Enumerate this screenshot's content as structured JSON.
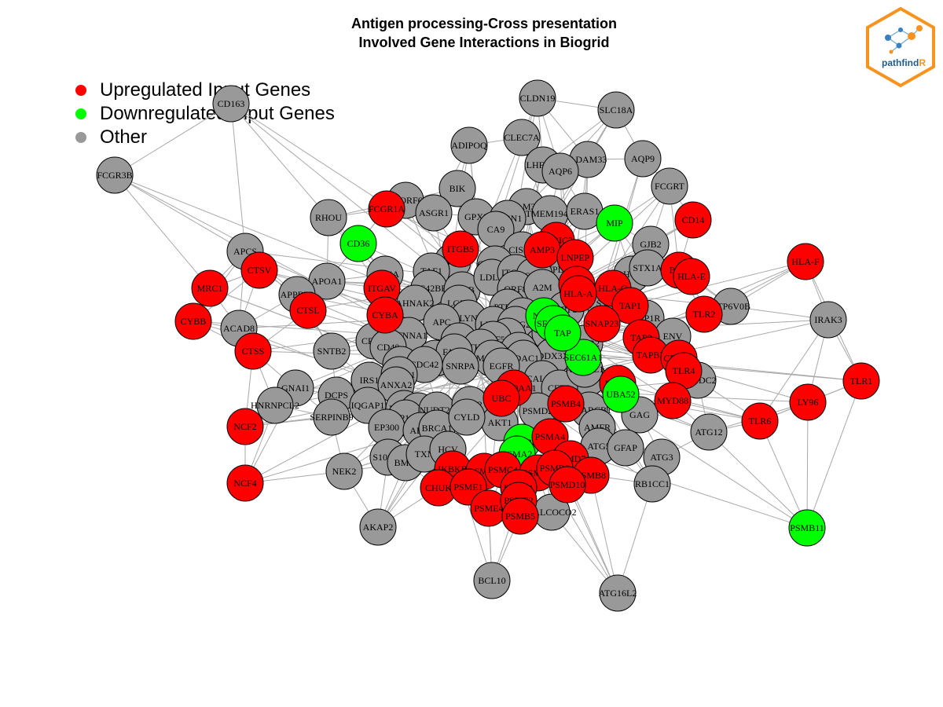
{
  "title": {
    "line1": "Antigen processing-Cross presentation",
    "line2": "Involved Gene Interactions in Biogrid"
  },
  "legend": {
    "items": [
      {
        "label": "Upregulated Input Genes",
        "color": "#FF0000"
      },
      {
        "label": "Downregulated Input Genes",
        "color": "#00FF00"
      },
      {
        "label": "Other",
        "color": "#999999"
      }
    ]
  },
  "logo": {
    "text_a": "pathfind",
    "text_b": "R",
    "border_color": "#F7931E",
    "text_color": "#1F5C8B"
  },
  "colors": {
    "up": "#FF0000",
    "down": "#00FF00",
    "other": "#999999",
    "edge": "#A9A9A9"
  },
  "network": {
    "nodes": [
      {
        "id": "CD163",
        "type": "other"
      },
      {
        "id": "CLDN19",
        "type": "other"
      },
      {
        "id": "SLC18A",
        "type": "other"
      },
      {
        "id": "CLEC7A",
        "type": "other"
      },
      {
        "id": "ADIPOQ",
        "type": "other"
      },
      {
        "id": "ADAM33",
        "type": "other"
      },
      {
        "id": "AQP9",
        "type": "other"
      },
      {
        "id": "LHFPL5",
        "type": "other"
      },
      {
        "id": "AQP6",
        "type": "other"
      },
      {
        "id": "FCGR3B",
        "type": "other"
      },
      {
        "id": "BIK",
        "type": "other"
      },
      {
        "id": "FCGRT",
        "type": "other"
      },
      {
        "id": "C17ORF62",
        "type": "other"
      },
      {
        "id": "FCGR1A",
        "type": "up"
      },
      {
        "id": "FAM3C",
        "type": "other"
      },
      {
        "id": "ASGR1",
        "type": "other"
      },
      {
        "id": "GPX8",
        "type": "other"
      },
      {
        "id": "JAGN1",
        "type": "other"
      },
      {
        "id": "TMEM194A",
        "type": "other"
      },
      {
        "id": "ERAS1",
        "type": "other"
      },
      {
        "id": "MIP",
        "type": "down"
      },
      {
        "id": "CD14",
        "type": "up"
      },
      {
        "id": "RHOU",
        "type": "other"
      },
      {
        "id": "CA9",
        "type": "other"
      },
      {
        "id": "CD36",
        "type": "down"
      },
      {
        "id": "GJB2",
        "type": "other"
      },
      {
        "id": "APCS",
        "type": "other"
      },
      {
        "id": "ITGB5",
        "type": "up"
      },
      {
        "id": "ANXA7",
        "type": "other"
      },
      {
        "id": "CISD2",
        "type": "other"
      },
      {
        "id": "ERGIC3",
        "type": "up"
      },
      {
        "id": "TMP3",
        "type": "up"
      },
      {
        "id": "LNPEP",
        "type": "up"
      },
      {
        "id": "HLA-F",
        "type": "up"
      },
      {
        "id": "CTSV",
        "type": "up"
      },
      {
        "id": "ATP4A",
        "type": "other"
      },
      {
        "id": "TAF1",
        "type": "other"
      },
      {
        "id": "CYB5R3",
        "type": "other"
      },
      {
        "id": "ZFPL1",
        "type": "other"
      },
      {
        "id": "ARHGAP3",
        "type": "other"
      },
      {
        "id": "STX1A",
        "type": "other"
      },
      {
        "id": "B2M",
        "type": "up"
      },
      {
        "id": "HLA-E",
        "type": "up"
      },
      {
        "id": "MRC1",
        "type": "up"
      },
      {
        "id": "APOA1",
        "type": "other"
      },
      {
        "id": "ITGAV",
        "type": "up"
      },
      {
        "id": "CDC42BPA",
        "type": "other"
      },
      {
        "id": "APOB",
        "type": "other"
      },
      {
        "id": "LDLR",
        "type": "other"
      },
      {
        "id": "ITGAL",
        "type": "other"
      },
      {
        "id": "SYK",
        "type": "other"
      },
      {
        "id": "STX4",
        "type": "up"
      },
      {
        "id": "HLA-G",
        "type": "up"
      },
      {
        "id": "APPBP2",
        "type": "other"
      },
      {
        "id": "AHNAK2",
        "type": "other"
      },
      {
        "id": "LGR4",
        "type": "other"
      },
      {
        "id": "ORF8",
        "type": "other"
      },
      {
        "id": "A2M",
        "type": "other"
      },
      {
        "id": "HLA-A",
        "type": "up"
      },
      {
        "id": "SYT",
        "type": "other"
      },
      {
        "id": "TAP1",
        "type": "up"
      },
      {
        "id": "ATP6V0B",
        "type": "other"
      },
      {
        "id": "CYBB",
        "type": "up"
      },
      {
        "id": "CTSL",
        "type": "up"
      },
      {
        "id": "CYBA",
        "type": "up"
      },
      {
        "id": "LYN",
        "type": "other"
      },
      {
        "id": "PTPN1",
        "type": "other"
      },
      {
        "id": "BCAP",
        "type": "other"
      },
      {
        "id": "NSP4",
        "type": "down"
      },
      {
        "id": "SEC61B",
        "type": "down"
      },
      {
        "id": "ORF3",
        "type": "other"
      },
      {
        "id": "SNAP23",
        "type": "up"
      },
      {
        "id": "GLP1R",
        "type": "other"
      },
      {
        "id": "TLR2",
        "type": "up"
      },
      {
        "id": "IRAK3",
        "type": "other"
      },
      {
        "id": "ACAD8",
        "type": "other"
      },
      {
        "id": "APC",
        "type": "other"
      },
      {
        "id": "CTNNA1",
        "type": "other"
      },
      {
        "id": "LMNA",
        "type": "other"
      },
      {
        "id": "INSIG2",
        "type": "other"
      },
      {
        "id": "ATP1A1",
        "type": "other"
      },
      {
        "id": "TAP2",
        "type": "up"
      },
      {
        "id": "ENV",
        "type": "other"
      },
      {
        "id": "CTSS",
        "type": "up"
      },
      {
        "id": "CRKL",
        "type": "other"
      },
      {
        "id": "CD40",
        "type": "other"
      },
      {
        "id": "BCL2L1",
        "type": "other"
      },
      {
        "id": "RNF5",
        "type": "other"
      },
      {
        "id": "STX6",
        "type": "other"
      },
      {
        "id": "VAPB",
        "type": "other"
      },
      {
        "id": "ASGR2",
        "type": "other"
      },
      {
        "id": "SNTB2",
        "type": "other"
      },
      {
        "id": "MSN",
        "type": "other"
      },
      {
        "id": "PTHRC2",
        "type": "other"
      },
      {
        "id": "KRAS",
        "type": "other"
      },
      {
        "id": "DDX3X",
        "type": "other"
      },
      {
        "id": "SEC61A1",
        "type": "down"
      },
      {
        "id": "TAPBP",
        "type": "up"
      },
      {
        "id": "CRYAB",
        "type": "up"
      },
      {
        "id": "FASN",
        "type": "other"
      },
      {
        "id": "MOV10",
        "type": "other"
      },
      {
        "id": "VDAC1",
        "type": "other"
      },
      {
        "id": "TLR4",
        "type": "up"
      },
      {
        "id": "TLR1",
        "type": "up"
      },
      {
        "id": "CKAP4",
        "type": "other"
      },
      {
        "id": "CDC42",
        "type": "other"
      },
      {
        "id": "SNRPA",
        "type": "other"
      },
      {
        "id": "EGFR",
        "type": "other"
      },
      {
        "id": "IRS1",
        "type": "other"
      },
      {
        "id": "TEX101",
        "type": "other"
      },
      {
        "id": "CALM1",
        "type": "other"
      },
      {
        "id": "HGS",
        "type": "other"
      },
      {
        "id": "MESDC2",
        "type": "other"
      },
      {
        "id": "MRC2",
        "type": "up"
      },
      {
        "id": "GNAI1",
        "type": "other"
      },
      {
        "id": "ANXA2",
        "type": "other"
      },
      {
        "id": "HSP90AA1",
        "type": "up"
      },
      {
        "id": "UBA52",
        "type": "down"
      },
      {
        "id": "LY96",
        "type": "up"
      },
      {
        "id": "DCPS",
        "type": "other"
      },
      {
        "id": "CFTR",
        "type": "other"
      },
      {
        "id": "MYD88",
        "type": "up"
      },
      {
        "id": "HNRNPCL2",
        "type": "other"
      },
      {
        "id": "IQGAP1",
        "type": "other"
      },
      {
        "id": "XRCC6",
        "type": "other"
      },
      {
        "id": "PRKDC",
        "type": "other"
      },
      {
        "id": "UBC",
        "type": "up"
      },
      {
        "id": "PSMD2",
        "type": "other"
      },
      {
        "id": "SMARCB1",
        "type": "other"
      },
      {
        "id": "GAG",
        "type": "other"
      },
      {
        "id": "TLR6",
        "type": "up"
      },
      {
        "id": "SERPINB9",
        "type": "other"
      },
      {
        "id": "PPP1CC",
        "type": "other"
      },
      {
        "id": "NUDT21",
        "type": "other"
      },
      {
        "id": "AGR2",
        "type": "other"
      },
      {
        "id": "PSMB4",
        "type": "up"
      },
      {
        "id": "ATG12",
        "type": "other"
      },
      {
        "id": "NCF2",
        "type": "up"
      },
      {
        "id": "EP300",
        "type": "other"
      },
      {
        "id": "APC2",
        "type": "other"
      },
      {
        "id": "BRCA1",
        "type": "other"
      },
      {
        "id": "AKT1",
        "type": "other"
      },
      {
        "id": "CYLD",
        "type": "other"
      },
      {
        "id": "AMFR",
        "type": "other"
      },
      {
        "id": "ATG5",
        "type": "other"
      },
      {
        "id": "GFAP",
        "type": "other"
      },
      {
        "id": "PSMB6",
        "type": "down"
      },
      {
        "id": "PSMA2",
        "type": "down"
      },
      {
        "id": "PSMA4",
        "type": "up"
      },
      {
        "id": "S100A9",
        "type": "other"
      },
      {
        "id": "BMI1",
        "type": "other"
      },
      {
        "id": "TXN",
        "type": "other"
      },
      {
        "id": "HCV",
        "type": "other"
      },
      {
        "id": "PSMD7",
        "type": "up"
      },
      {
        "id": "ATG3",
        "type": "other"
      },
      {
        "id": "NEK2",
        "type": "other"
      },
      {
        "id": "IKBKB",
        "type": "up"
      },
      {
        "id": "PSMD1",
        "type": "up"
      },
      {
        "id": "PSMC4",
        "type": "up"
      },
      {
        "id": "PSMB3",
        "type": "up"
      },
      {
        "id": "PSMD2R",
        "type": "up"
      },
      {
        "id": "PSMB8",
        "type": "up"
      },
      {
        "id": "RB1CC1",
        "type": "other"
      },
      {
        "id": "NCF4",
        "type": "up"
      },
      {
        "id": "CHUK",
        "type": "up"
      },
      {
        "id": "PSME1",
        "type": "up"
      },
      {
        "id": "BECN1",
        "type": "up"
      },
      {
        "id": "PSMD10",
        "type": "up"
      },
      {
        "id": "PSME4",
        "type": "up"
      },
      {
        "id": "PSME2",
        "type": "up"
      },
      {
        "id": "PSMB5",
        "type": "up"
      },
      {
        "id": "CALCOCO2",
        "type": "other"
      },
      {
        "id": "PSMB11",
        "type": "down"
      },
      {
        "id": "AKAP2",
        "type": "other"
      },
      {
        "id": "BCL10",
        "type": "other"
      },
      {
        "id": "ATG16L2",
        "type": "other"
      },
      {
        "id": "ATG16L1",
        "type": "other"
      },
      {
        "id": "TAP",
        "type": "down"
      }
    ]
  }
}
